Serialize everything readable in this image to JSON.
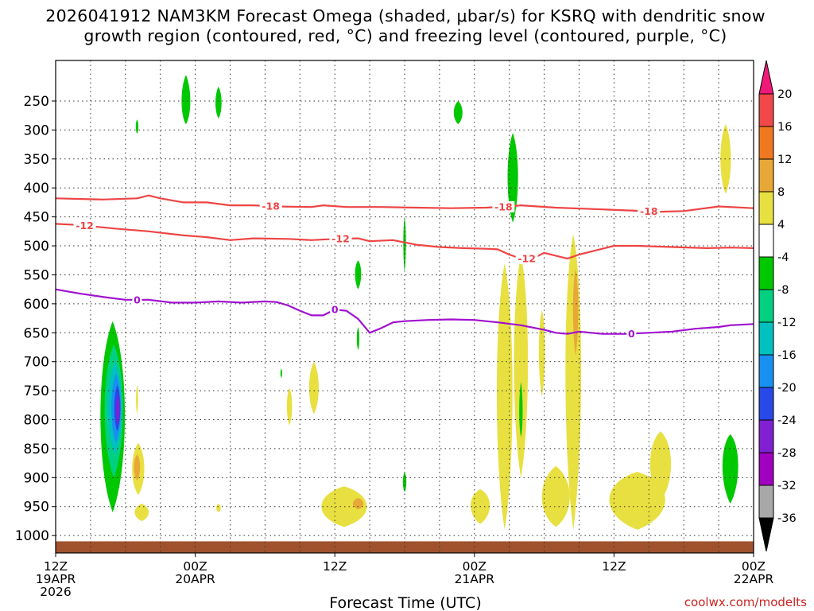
{
  "chart_data": {
    "type": "time-height contour",
    "title_line1": "2026041912 NAM3KM Forecast Omega (shaded, μbar/s) for KSRQ with dendritic snow",
    "title_line2": "growth region (contoured, red, °C) and freezing level (contoured, purple, °C)",
    "xlabel": "Forecast Time (UTC)",
    "credit": "coolwx.com/modelts",
    "x_range_hours": [
      0,
      60
    ],
    "x_ticks": [
      {
        "hour": 0,
        "lines": [
          "12Z",
          "19APR",
          "2026"
        ]
      },
      {
        "hour": 12,
        "lines": [
          "00Z",
          "20APR"
        ]
      },
      {
        "hour": 24,
        "lines": [
          "12Z"
        ]
      },
      {
        "hour": 36,
        "lines": [
          "00Z",
          "21APR"
        ]
      },
      {
        "hour": 48,
        "lines": [
          "12Z"
        ]
      },
      {
        "hour": 60,
        "lines": [
          "00Z",
          "22APR"
        ]
      }
    ],
    "y_range_hpa": [
      1030,
      180
    ],
    "y_ticks": [
      250,
      300,
      350,
      400,
      450,
      500,
      550,
      600,
      650,
      700,
      750,
      800,
      850,
      900,
      950,
      1000
    ],
    "colorbar": {
      "tick_labels": [
        "20",
        "16",
        "12",
        "8",
        "4",
        "-4",
        "-8",
        "-12",
        "-16",
        "-20",
        "-24",
        "-28",
        "-32",
        "-36"
      ],
      "colors": [
        "#f01878",
        "#f04848",
        "#f07820",
        "#e8a838",
        "#e8e040",
        "#ffffff",
        "#00c800",
        "#00d080",
        "#00c0c0",
        "#1890f0",
        "#2848e8",
        "#8020d0",
        "#a000c0",
        "#a8a8a8",
        "#000000"
      ]
    },
    "contours": [
      {
        "name": "-18 C isotherm",
        "color": "#ee4444",
        "label": "-18",
        "label_hours": [
          18.5,
          38.5,
          51
        ],
        "points": [
          [
            0,
            418
          ],
          [
            4,
            420
          ],
          [
            7,
            418
          ],
          [
            8,
            413
          ],
          [
            9,
            418
          ],
          [
            11,
            425
          ],
          [
            13,
            425
          ],
          [
            15,
            430
          ],
          [
            17,
            430
          ],
          [
            19,
            432
          ],
          [
            22,
            433
          ],
          [
            23,
            430
          ],
          [
            25,
            433
          ],
          [
            28,
            433
          ],
          [
            31,
            434
          ],
          [
            34,
            435
          ],
          [
            37,
            434
          ],
          [
            39,
            432
          ],
          [
            40,
            430
          ],
          [
            43,
            434
          ],
          [
            47,
            437
          ],
          [
            52,
            441
          ],
          [
            54,
            440
          ],
          [
            57,
            432
          ],
          [
            60,
            435
          ]
        ]
      },
      {
        "name": "-12 C isotherm",
        "color": "#ee4444",
        "label": "-12",
        "label_hours": [
          2.5,
          24.5,
          40.5
        ],
        "points": [
          [
            0,
            462
          ],
          [
            2,
            464
          ],
          [
            5,
            470
          ],
          [
            8,
            475
          ],
          [
            11,
            482
          ],
          [
            13,
            485
          ],
          [
            15,
            490
          ],
          [
            17,
            487
          ],
          [
            20,
            488
          ],
          [
            22,
            490
          ],
          [
            24,
            488
          ],
          [
            26,
            487
          ],
          [
            27,
            492
          ],
          [
            29,
            490
          ],
          [
            31,
            498
          ],
          [
            33,
            502
          ],
          [
            35,
            504
          ],
          [
            37,
            505
          ],
          [
            38,
            506
          ],
          [
            39,
            515
          ],
          [
            40,
            522
          ],
          [
            41,
            522
          ],
          [
            42,
            512
          ],
          [
            43,
            517
          ],
          [
            44,
            522
          ],
          [
            45,
            515
          ],
          [
            46,
            510
          ],
          [
            48,
            500
          ],
          [
            50,
            500
          ],
          [
            53,
            502
          ],
          [
            56,
            504
          ],
          [
            58,
            503
          ],
          [
            60,
            504
          ]
        ]
      },
      {
        "name": "0 C freezing level",
        "color": "#a010d0",
        "label": "0",
        "label_hours": [
          7,
          24,
          49.5
        ],
        "points": [
          [
            0,
            575
          ],
          [
            2,
            582
          ],
          [
            4,
            588
          ],
          [
            6,
            593
          ],
          [
            8,
            593
          ],
          [
            10,
            598
          ],
          [
            12,
            598
          ],
          [
            14,
            596
          ],
          [
            16,
            598
          ],
          [
            18,
            596
          ],
          [
            19,
            597
          ],
          [
            20,
            603
          ],
          [
            21,
            612
          ],
          [
            22,
            620
          ],
          [
            23,
            620
          ],
          [
            24,
            610
          ],
          [
            25,
            612
          ],
          [
            26,
            626
          ],
          [
            27,
            650
          ],
          [
            28,
            642
          ],
          [
            29,
            632
          ],
          [
            30,
            630
          ],
          [
            32,
            628
          ],
          [
            34,
            627
          ],
          [
            36,
            628
          ],
          [
            38,
            632
          ],
          [
            40,
            637
          ],
          [
            42,
            645
          ],
          [
            43,
            650
          ],
          [
            44,
            652
          ],
          [
            45,
            648
          ],
          [
            47,
            652
          ],
          [
            49,
            652
          ],
          [
            51,
            650
          ],
          [
            53,
            648
          ],
          [
            55,
            643
          ],
          [
            57,
            640
          ],
          [
            58,
            637
          ],
          [
            60,
            635
          ]
        ]
      }
    ],
    "shaded_regions": [
      {
        "level": "-8",
        "cx_hour": 11.2,
        "cy_hpa": 255,
        "hw": 0.5,
        "top": 205,
        "bottom": 290,
        "color": "#00c800"
      },
      {
        "level": "-8",
        "cx_hour": 14.0,
        "cy_hpa": 255,
        "hw": 0.35,
        "top": 225,
        "bottom": 280,
        "color": "#00c800"
      },
      {
        "level": "-8",
        "cx_hour": 7.0,
        "cy_hpa": 293,
        "hw": 0.15,
        "top": 282,
        "bottom": 307,
        "color": "#00c800"
      },
      {
        "level": "-8",
        "cx_hour": 34.6,
        "cy_hpa": 270,
        "hw": 0.5,
        "top": 250,
        "bottom": 290,
        "color": "#00c800"
      },
      {
        "level": "-8",
        "cx_hour": 39.3,
        "cy_hpa": 380,
        "hw": 0.6,
        "top": 305,
        "bottom": 460,
        "color": "#00c800"
      },
      {
        "level": "4",
        "cx_hour": 57.6,
        "cy_hpa": 350,
        "hw": 0.6,
        "top": 290,
        "bottom": 410,
        "color": "#e8e040"
      },
      {
        "level": "-8",
        "cx_hour": 30.0,
        "cy_hpa": 490,
        "hw": 0.15,
        "top": 450,
        "bottom": 545,
        "color": "#00c800"
      },
      {
        "level": "-8",
        "cx_hour": 26.0,
        "cy_hpa": 545,
        "hw": 0.35,
        "top": 525,
        "bottom": 575,
        "color": "#00c800"
      },
      {
        "level": "-8",
        "cx_hour": 26.0,
        "cy_hpa": 660,
        "hw": 0.15,
        "top": 640,
        "bottom": 680,
        "color": "#00c800"
      },
      {
        "level": "-8",
        "cx_hour": 19.4,
        "cy_hpa": 720,
        "hw": 0.1,
        "top": 712,
        "bottom": 728,
        "color": "#00c800"
      },
      {
        "level": "-8",
        "cx_hour": 4.9,
        "cy_hpa": 790,
        "hw": 1.4,
        "top": 630,
        "bottom": 960,
        "color": "#00c800"
      },
      {
        "level": "-12",
        "cx_hour": 5.0,
        "cy_hpa": 780,
        "hw": 1.05,
        "top": 670,
        "bottom": 900,
        "color": "#00d080"
      },
      {
        "level": "-16",
        "cx_hour": 5.1,
        "cy_hpa": 780,
        "hw": 0.8,
        "top": 700,
        "bottom": 860,
        "color": "#00c0c0"
      },
      {
        "level": "-20",
        "cx_hour": 5.2,
        "cy_hpa": 780,
        "hw": 0.55,
        "top": 720,
        "bottom": 840,
        "color": "#1890f0"
      },
      {
        "level": "-24",
        "cx_hour": 5.3,
        "cy_hpa": 780,
        "hw": 0.35,
        "top": 740,
        "bottom": 820,
        "color": "#2848e8"
      },
      {
        "level": "-28",
        "cx_hour": 5.35,
        "cy_hpa": 785,
        "hw": 0.2,
        "top": 755,
        "bottom": 810,
        "color": "#8020d0"
      },
      {
        "level": "4",
        "cx_hour": 7.1,
        "cy_hpa": 885,
        "hw": 0.7,
        "top": 840,
        "bottom": 930,
        "color": "#e8e040"
      },
      {
        "level": "8",
        "cx_hour": 7.0,
        "cy_hpa": 880,
        "hw": 0.35,
        "top": 860,
        "bottom": 905,
        "color": "#e8a838"
      },
      {
        "level": "4",
        "cx_hour": 7.4,
        "cy_hpa": 960,
        "hw": 0.8,
        "top": 945,
        "bottom": 975,
        "color": "#e8e040"
      },
      {
        "level": "4",
        "cx_hour": 7.0,
        "cy_hpa": 765,
        "hw": 0.12,
        "top": 740,
        "bottom": 790,
        "color": "#e8e040"
      },
      {
        "level": "4",
        "cx_hour": 14.0,
        "cy_hpa": 952,
        "hw": 0.25,
        "top": 945,
        "bottom": 960,
        "color": "#e8e040"
      },
      {
        "level": "4",
        "cx_hour": 20.1,
        "cy_hpa": 775,
        "hw": 0.3,
        "top": 745,
        "bottom": 810,
        "color": "#e8e040"
      },
      {
        "level": "4",
        "cx_hour": 22.2,
        "cy_hpa": 745,
        "hw": 0.55,
        "top": 700,
        "bottom": 790,
        "color": "#e8e040"
      },
      {
        "level": "4",
        "cx_hour": 24.8,
        "cy_hpa": 950,
        "hw": 2.6,
        "top": 915,
        "bottom": 985,
        "color": "#e8e040"
      },
      {
        "level": "8",
        "cx_hour": 26.0,
        "cy_hpa": 945,
        "hw": 0.6,
        "top": 935,
        "bottom": 955,
        "color": "#e8a838"
      },
      {
        "level": "-8",
        "cx_hour": 30.0,
        "cy_hpa": 908,
        "hw": 0.2,
        "top": 890,
        "bottom": 925,
        "color": "#00c800"
      },
      {
        "level": "4",
        "cx_hour": 38.6,
        "cy_hpa": 740,
        "hw": 0.9,
        "top": 530,
        "bottom": 990,
        "color": "#e8e040"
      },
      {
        "level": "4",
        "cx_hour": 40.0,
        "cy_hpa": 690,
        "hw": 0.8,
        "top": 515,
        "bottom": 900,
        "color": "#e8e040"
      },
      {
        "level": "-8",
        "cx_hour": 40.0,
        "cy_hpa": 790,
        "hw": 0.2,
        "top": 735,
        "bottom": 830,
        "color": "#00c800"
      },
      {
        "level": "4",
        "cx_hour": 36.5,
        "cy_hpa": 945,
        "hw": 1.1,
        "top": 920,
        "bottom": 980,
        "color": "#e8e040"
      },
      {
        "level": "4",
        "cx_hour": 41.8,
        "cy_hpa": 675,
        "hw": 0.35,
        "top": 610,
        "bottom": 760,
        "color": "#e8e040"
      },
      {
        "level": "4",
        "cx_hour": 44.5,
        "cy_hpa": 680,
        "hw": 0.9,
        "top": 480,
        "bottom": 990,
        "color": "#e8e040"
      },
      {
        "level": "8",
        "cx_hour": 44.7,
        "cy_hpa": 600,
        "hw": 0.3,
        "top": 540,
        "bottom": 690,
        "color": "#e8a838"
      },
      {
        "level": "4",
        "cx_hour": 43.0,
        "cy_hpa": 935,
        "hw": 1.6,
        "top": 880,
        "bottom": 985,
        "color": "#e8e040"
      },
      {
        "level": "4",
        "cx_hour": 50.0,
        "cy_hpa": 935,
        "hw": 3.2,
        "top": 890,
        "bottom": 990,
        "color": "#e8e040"
      },
      {
        "level": "4",
        "cx_hour": 52.0,
        "cy_hpa": 870,
        "hw": 1.2,
        "top": 820,
        "bottom": 940,
        "color": "#e8e040"
      },
      {
        "level": "-8",
        "cx_hour": 58.0,
        "cy_hpa": 870,
        "hw": 0.9,
        "top": 825,
        "bottom": 945,
        "color": "#00c800"
      }
    ],
    "terrain": {
      "color": "#a0522d",
      "hpa": 1010,
      "hpa_bottom": 1030
    }
  }
}
